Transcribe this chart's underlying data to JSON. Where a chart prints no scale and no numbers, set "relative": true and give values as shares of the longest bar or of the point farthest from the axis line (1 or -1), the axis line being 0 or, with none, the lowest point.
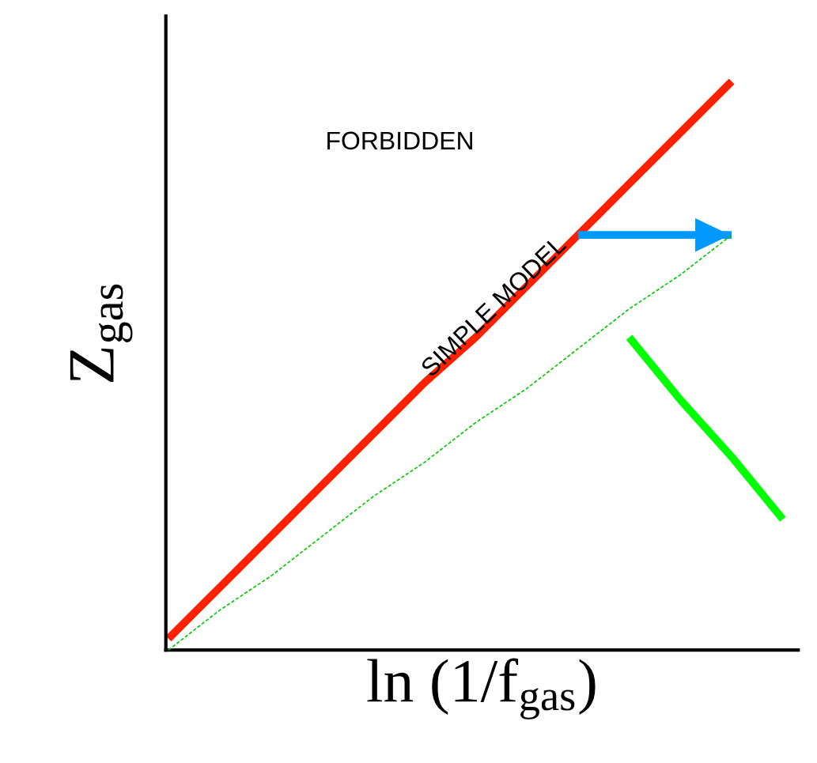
{
  "chart_data": {
    "type": "line",
    "relative": true,
    "xlabel": "ln (1/f$_{gas}$)",
    "ylabel": "Z$_{gas}$",
    "categories": [
      null,
      null,
      null,
      null,
      null,
      null,
      null,
      null,
      null,
      null,
      null,
      null,
      null
    ],
    "series": [
      {
        "color": "#ff2000",
        "line_style": "solid",
        "values": [
          0.02,
          0.11,
          0.2,
          0.29,
          0.38,
          0.47,
          0.55,
          0.64,
          0.73,
          0.82,
          0.91,
          1.0,
          null
        ]
      },
      {
        "color": "#00cc00",
        "line_style": "dashed",
        "values": [
          0.0,
          0.07,
          0.13,
          0.2,
          0.27,
          0.33,
          0.4,
          0.46,
          0.53,
          0.6,
          0.66,
          0.73,
          null
        ]
      },
      {
        "color": "#0099ff",
        "line_style": "solid",
        "values": [
          null,
          null,
          null,
          null,
          null,
          null,
          null,
          null,
          0.73,
          0.73,
          0.73,
          0.73,
          null
        ]
      },
      {
        "color": "#00ff00",
        "line_style": "solid",
        "values": [
          null,
          null,
          null,
          null,
          null,
          null,
          null,
          null,
          null,
          0.55,
          0.44,
          0.34,
          0.23
        ]
      }
    ],
    "annotations": [
      "FORBIDDEN",
      "SIMPLE MODEL"
    ]
  }
}
